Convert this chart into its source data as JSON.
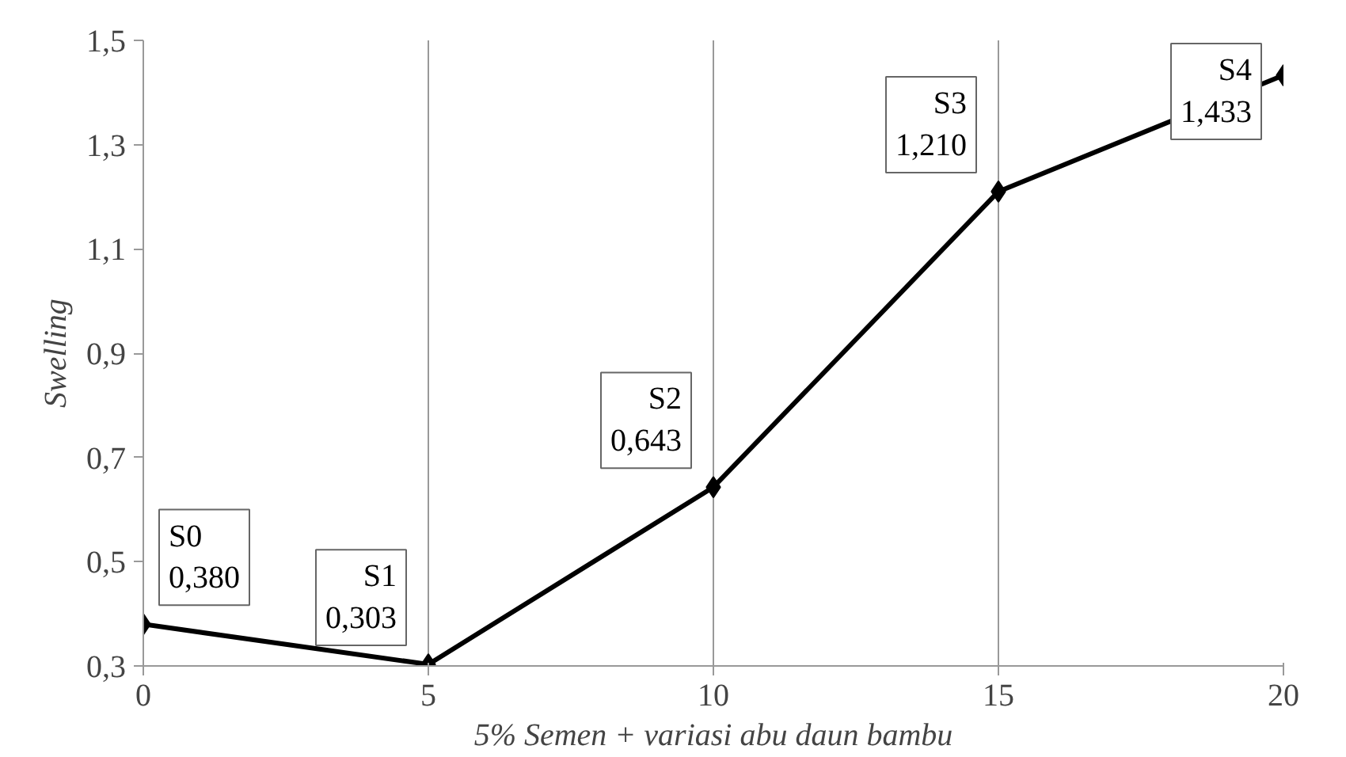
{
  "chart_data": {
    "type": "line",
    "xlabel": "5% Semen + variasi abu daun bambu",
    "ylabel": "Swelling",
    "x": [
      0,
      5,
      10,
      15,
      20
    ],
    "series": [
      {
        "color": "#000000",
        "values": [
          0.38,
          0.303,
          0.643,
          1.21,
          1.433
        ]
      }
    ],
    "xlim": [
      0,
      20
    ],
    "xticks": [
      0,
      5,
      10,
      15,
      20
    ],
    "ylim": [
      0.3,
      1.5
    ],
    "yticks": [
      {
        "value": 0.3,
        "label": "0,3"
      },
      {
        "value": 0.5,
        "label": "0,5"
      },
      {
        "value": 0.7,
        "label": "0,7"
      },
      {
        "value": 0.9,
        "label": "0,9"
      },
      {
        "value": 1.1,
        "label": "1,1"
      },
      {
        "value": 1.3,
        "label": "1,3"
      },
      {
        "value": 1.5,
        "label": "1,5"
      }
    ],
    "grid": "x",
    "marker": "diamond",
    "line_style": "solid",
    "annotations": [
      {
        "text": "S0\n0,380",
        "x": 0,
        "y": 0.38
      },
      {
        "text": "S1\n0,303",
        "x": 5,
        "y": 0.303
      },
      {
        "text": "S2\n0,643",
        "x": 10,
        "y": 0.643
      },
      {
        "text": "S3\n1,210",
        "x": 15,
        "y": 1.21
      },
      {
        "text": "S4\n1,433",
        "x": 20,
        "y": 1.433
      }
    ]
  }
}
